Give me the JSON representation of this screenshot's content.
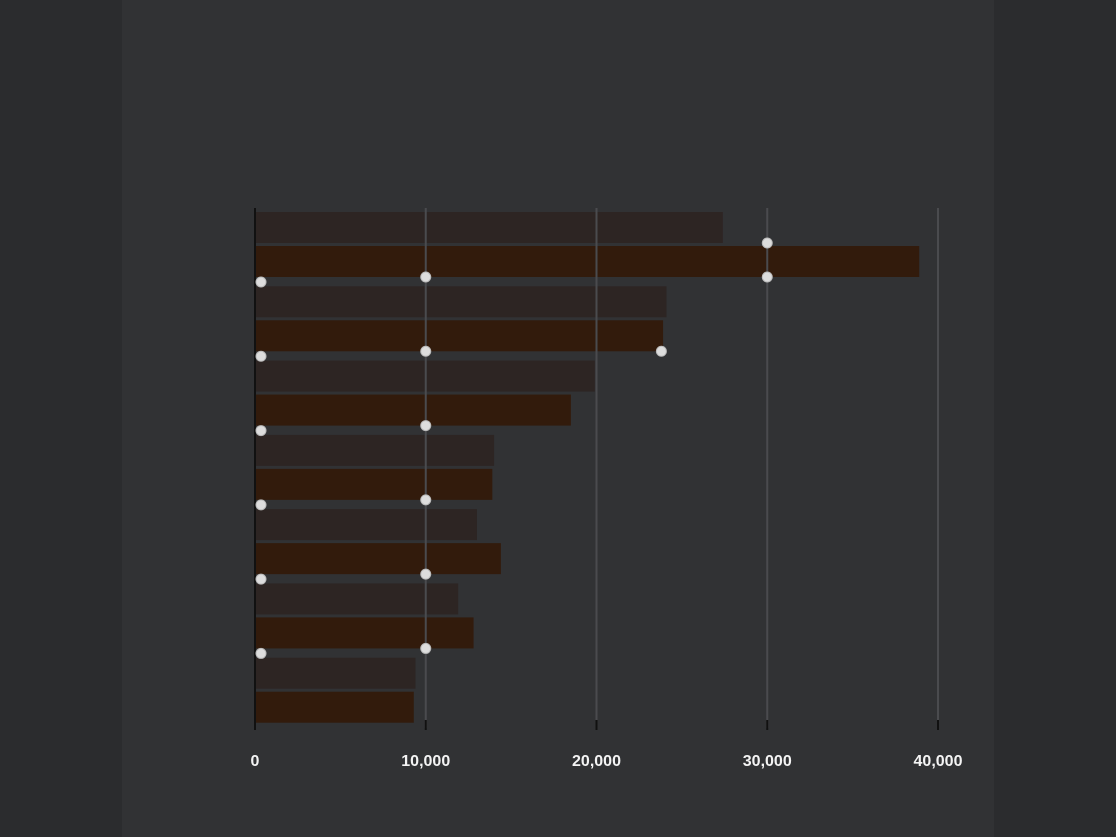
{
  "title": "",
  "subtitle": "",
  "note": "",
  "caption": "",
  "colors": {
    "background": "#313234",
    "outer_background": "#2b2c2e",
    "grid": "#4a4b4e",
    "axis": "#111111",
    "text": "#f4f4f4",
    "marker": "#dddddd"
  },
  "chart_data": {
    "type": "bar",
    "orientation": "horizontal",
    "title": "",
    "xlabel": "",
    "ylabel": "",
    "xlim": [
      0,
      40000
    ],
    "xticks": [
      0,
      10000,
      20000,
      30000,
      40000
    ],
    "xtick_labels": [
      "0",
      "10,000",
      "20,000",
      "30,000",
      "40,000"
    ],
    "grid": true,
    "legend_position": "inside-top-left",
    "categories": [
      "",
      "",
      "",
      "",
      "",
      "",
      ""
    ],
    "series": [
      {
        "name": "",
        "color": "#2d2523",
        "values": [
          27400,
          24100,
          19900,
          14000,
          13000,
          11900,
          9400
        ]
      },
      {
        "name": "",
        "color": "#321b0c",
        "values": [
          38900,
          23900,
          18500,
          13900,
          14400,
          12800,
          9300
        ]
      }
    ],
    "markers": [
      {
        "category_index": 0,
        "series_index": 1,
        "values": [
          0,
          10000,
          30000
        ]
      },
      {
        "category_index": 0,
        "series_index": 0,
        "values": [
          30000
        ]
      },
      {
        "category_index": 1,
        "series_index": 1,
        "values": [
          0,
          10000,
          23800
        ]
      },
      {
        "category_index": 2,
        "series_index": 1,
        "values": [
          0,
          10000
        ]
      },
      {
        "category_index": 3,
        "series_index": 1,
        "values": [
          0,
          10000
        ]
      },
      {
        "category_index": 4,
        "series_index": 1,
        "values": [
          0,
          10000
        ]
      },
      {
        "category_index": 5,
        "series_index": 1,
        "values": [
          0,
          10000
        ]
      }
    ]
  }
}
